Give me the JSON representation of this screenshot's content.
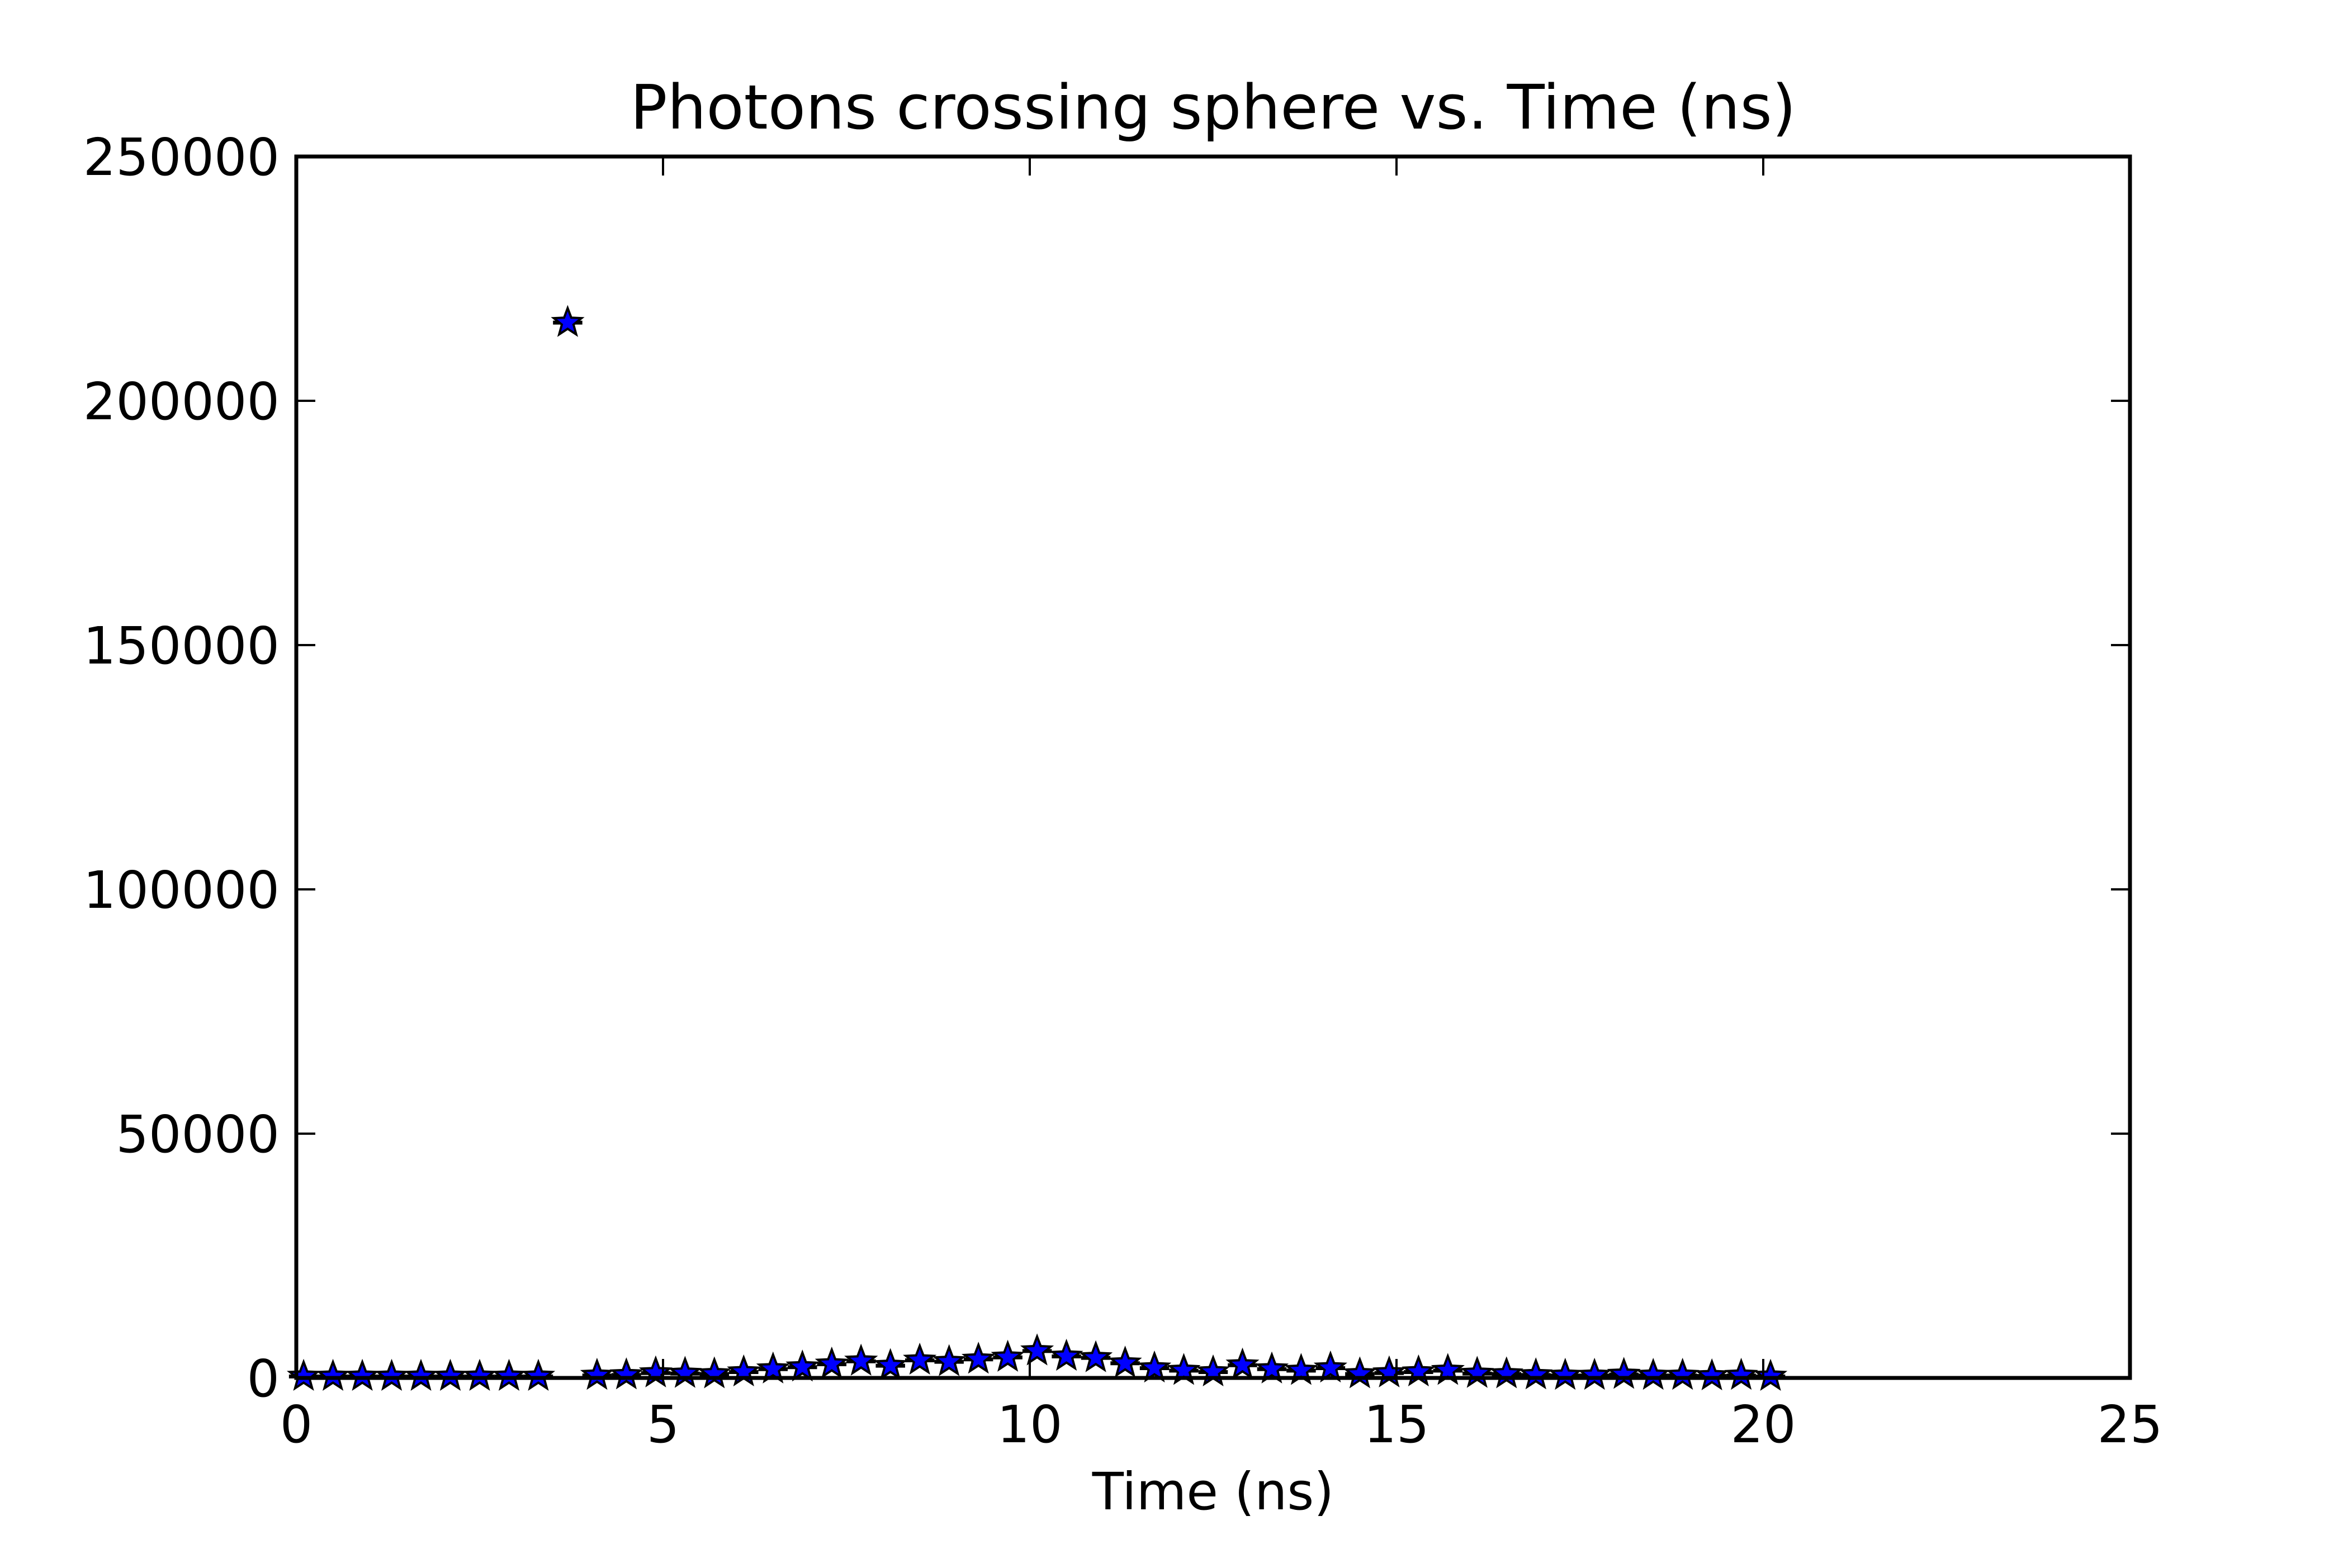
{
  "chart_data": {
    "type": "scatter",
    "title": "Photons crossing sphere vs. Time (ns)",
    "xlabel": "Time (ns)",
    "ylabel": "",
    "xlim": [
      0,
      25
    ],
    "ylim": [
      0,
      250000
    ],
    "xticks": [
      0,
      5,
      10,
      15,
      20,
      25
    ],
    "yticks": [
      0,
      50000,
      100000,
      150000,
      200000,
      250000
    ],
    "grid": false,
    "legend": "none",
    "marker": "star",
    "marker_color": "#0000ff",
    "marker_edge_color": "#000000",
    "line_color": "#000000",
    "series": [
      {
        "x": [
          0.1,
          0.5,
          0.9,
          1.3,
          1.7,
          2.1,
          2.5,
          2.9,
          3.3,
          3.7,
          4.1,
          4.5,
          4.9,
          5.3,
          5.7,
          6.1,
          6.5,
          6.9,
          7.3,
          7.7,
          8.1,
          8.5,
          8.9,
          9.3,
          9.7,
          10.1,
          10.5,
          10.9,
          11.3,
          11.7,
          12.1,
          12.5,
          12.9,
          13.3,
          13.7,
          14.1,
          14.5,
          14.9,
          15.3,
          15.7,
          16.1,
          16.5,
          16.9,
          17.3,
          17.7,
          18.1,
          18.5,
          18.9,
          19.3,
          19.7,
          20.1
        ],
        "y": [
          300,
          300,
          300,
          300,
          300,
          300,
          300,
          300,
          300,
          216000,
          500,
          600,
          1000,
          900,
          800,
          1200,
          1800,
          2200,
          2800,
          3400,
          2500,
          3600,
          3300,
          3800,
          4200,
          5500,
          4400,
          4100,
          3000,
          2000,
          1500,
          1200,
          2600,
          1800,
          1500,
          2000,
          800,
          1000,
          1200,
          1500,
          900,
          800,
          600,
          500,
          500,
          700,
          500,
          500,
          400,
          500,
          300
        ],
        "errors": [
          0,
          0,
          0,
          0,
          0,
          0,
          0,
          0,
          0,
          1200,
          0,
          0,
          0,
          0,
          0,
          0,
          0,
          0,
          0,
          0,
          0,
          0,
          0,
          0,
          0,
          0,
          0,
          0,
          0,
          0,
          0,
          0,
          0,
          0,
          0,
          0,
          0,
          0,
          0,
          0,
          0,
          0,
          0,
          0,
          0,
          0,
          0,
          0,
          0,
          0,
          0
        ],
        "xerr": 0.2
      }
    ]
  }
}
